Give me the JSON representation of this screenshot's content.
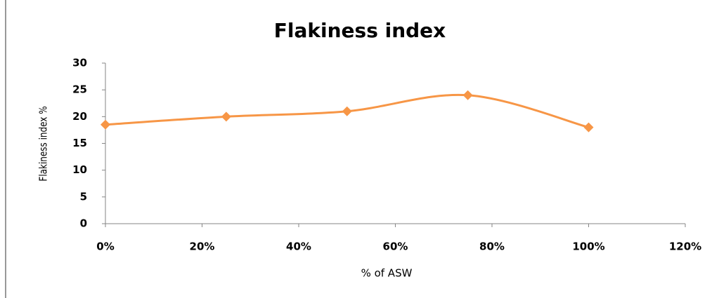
{
  "chart_data": {
    "type": "line",
    "title": "Flakiness index",
    "xlabel": "% of ASW",
    "ylabel": "Flakiness index %",
    "x": [
      0,
      25,
      50,
      75,
      100
    ],
    "series": [
      {
        "name": "Flakiness index",
        "color": "#f79646",
        "values": [
          18.5,
          20,
          21,
          24,
          18
        ]
      }
    ],
    "smooth": true,
    "xlim": [
      0,
      120
    ],
    "xticks": [
      {
        "value": 0,
        "label": "0%"
      },
      {
        "value": 20,
        "label": "20%"
      },
      {
        "value": 40,
        "label": "40%"
      },
      {
        "value": 60,
        "label": "60%"
      },
      {
        "value": 80,
        "label": "80%"
      },
      {
        "value": 100,
        "label": "100%"
      },
      {
        "value": 120,
        "label": "120%"
      }
    ],
    "ylim": [
      0,
      30
    ],
    "yticks": [
      0,
      5,
      10,
      15,
      20,
      25,
      30
    ],
    "grid": false
  }
}
